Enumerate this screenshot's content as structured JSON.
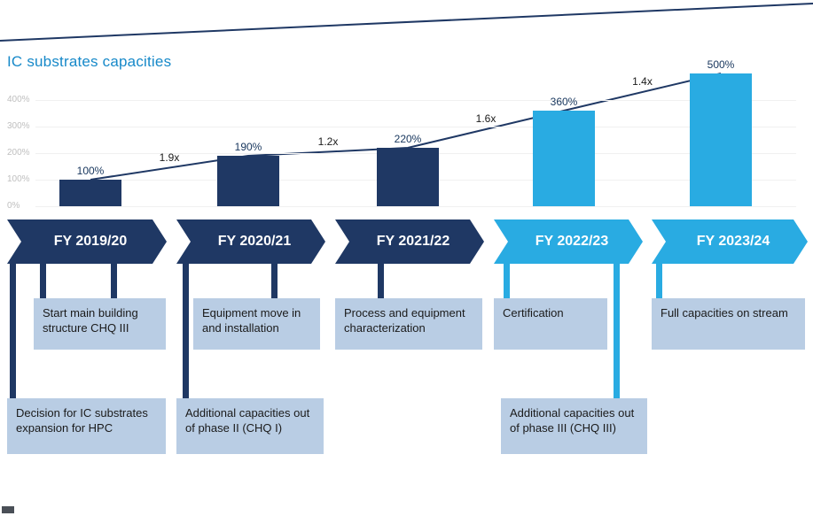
{
  "title": "IC substrates capacities",
  "colors": {
    "navy": "#1F3864",
    "light_blue": "#29ABE2",
    "title_blue": "#1789C9",
    "note_box_fill": "#B9CDE4",
    "axis_gray": "#BFBFBF"
  },
  "chart_data": {
    "type": "bar",
    "title": "IC substrates capacities",
    "categories": [
      "FY 2019/20",
      "FY 2020/21",
      "FY 2021/22",
      "FY 2022/23",
      "FY 2023/24"
    ],
    "values": [
      100,
      190,
      220,
      360,
      500
    ],
    "value_labels": [
      "100%",
      "190%",
      "220%",
      "360%",
      "500%"
    ],
    "growth_labels": [
      "1.9x",
      "1.2x",
      "1.6x",
      "1.4x"
    ],
    "bar_colors": [
      "#1F3864",
      "#1F3864",
      "#1F3864",
      "#29ABE2",
      "#29ABE2"
    ],
    "yticks": [
      0,
      100,
      200,
      300,
      400
    ],
    "ytick_labels": [
      "0%",
      "100%",
      "200%",
      "300%",
      "400%"
    ],
    "ylim": [
      0,
      500
    ],
    "xlabel": "",
    "ylabel": "",
    "grid": true,
    "line_overlay": "connects bar tops with growth multipliers"
  },
  "timeline": {
    "milestones": [
      {
        "label": "FY 2019/20",
        "color": "#1F3864"
      },
      {
        "label": "FY 2020/21",
        "color": "#1F3864"
      },
      {
        "label": "FY 2021/22",
        "color": "#1F3864"
      },
      {
        "label": "FY 2022/23",
        "color": "#29ABE2"
      },
      {
        "label": "FY 2023/24",
        "color": "#29ABE2"
      }
    ]
  },
  "notes": {
    "upper": [
      "Start main building structure CHQ III",
      "Equipment move in and installation",
      "Process and equipment characterization",
      "Certification",
      "Full capacities on stream"
    ],
    "lower": [
      "Decision for IC substrates expansion for HPC",
      "Additional capacities out of phase II (CHQ I)",
      "Additional capacities out of phase III (CHQ III)"
    ]
  }
}
